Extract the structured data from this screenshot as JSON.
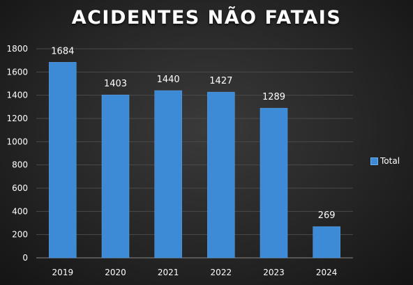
{
  "chart_data": {
    "type": "bar",
    "title": "ACIDENTES NÃO FATAIS",
    "categories": [
      "2019",
      "2020",
      "2021",
      "2022",
      "2023",
      "2024"
    ],
    "series": [
      {
        "name": "Total",
        "values": [
          1684,
          1403,
          1440,
          1427,
          1289,
          269
        ],
        "color": "#3d8ad6"
      }
    ],
    "ylim": [
      0,
      1800
    ],
    "yticks": [
      0,
      200,
      400,
      600,
      800,
      1000,
      1200,
      1400,
      1600,
      1800
    ],
    "data_labels": [
      "1684",
      "1403",
      "1440",
      "1427",
      "1289",
      "269"
    ],
    "grid": true,
    "legend": {
      "position": "right",
      "entries": [
        "Total"
      ]
    },
    "background": "#262626",
    "gridline_color": "#4a4a4a"
  }
}
